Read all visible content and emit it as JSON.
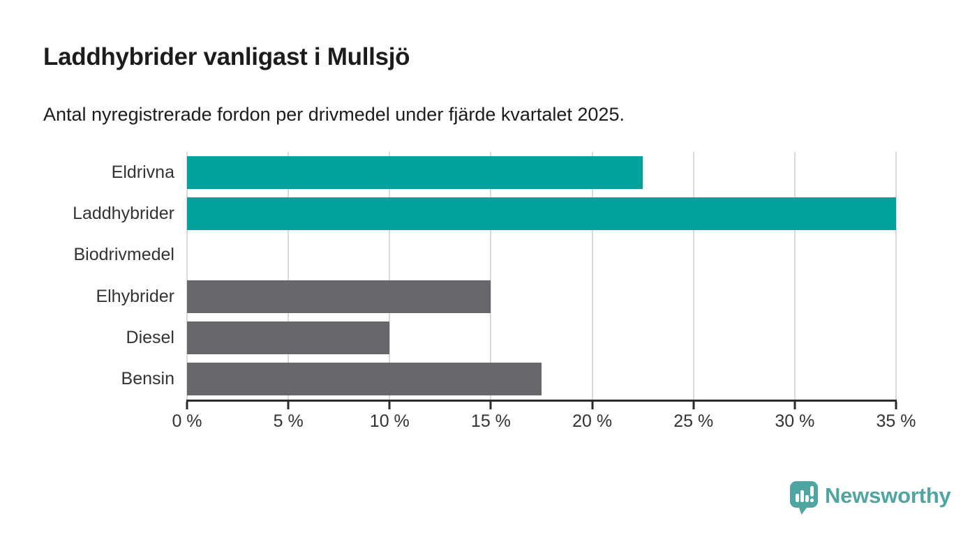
{
  "title": "Laddhybrider vanligast i Mullsjö",
  "subtitle": "Antal nyregistrerade fordon per drivmedel under fjärde kvartalet 2025.",
  "chart_data": {
    "type": "bar",
    "orientation": "horizontal",
    "title": "Laddhybrider vanligast i Mullsjö",
    "subtitle": "Antal nyregistrerade fordon per drivmedel under fjärde kvartalet 2025.",
    "categories": [
      "Eldrivna",
      "Laddhybrider",
      "Biodrivmedel",
      "Elhybrider",
      "Diesel",
      "Bensin"
    ],
    "values": [
      22.5,
      35,
      0,
      15,
      10,
      17.5
    ],
    "unit": "%",
    "bar_colors": [
      "#00a29b",
      "#00a29b",
      "#67666b",
      "#67666b",
      "#67666b",
      "#67666b"
    ],
    "highlight_color": "#00a29b",
    "default_bar_color": "#67666b",
    "xlabel": "",
    "ylabel": "",
    "xlim": [
      0,
      35
    ],
    "x_ticks": [
      0,
      5,
      10,
      15,
      20,
      25,
      30,
      35
    ],
    "x_tick_labels": [
      "0 %",
      "5 %",
      "10 %",
      "15 %",
      "20 %",
      "25 %",
      "30 %",
      "35 %"
    ],
    "grid": "vertical",
    "legend": "none"
  },
  "colors": {
    "highlight": "#00a29b",
    "bar_gray": "#67666b",
    "gridline": "#d9d9d9",
    "axis": "#2b2b2b",
    "text": "#333333",
    "title_text": "#1c1c1c",
    "logo": "#4fa5a1",
    "background": "#ffffff"
  },
  "footer": {
    "brand": "Newsworthy",
    "logo_icon": "speech-bubble-bar-chart-icon"
  }
}
